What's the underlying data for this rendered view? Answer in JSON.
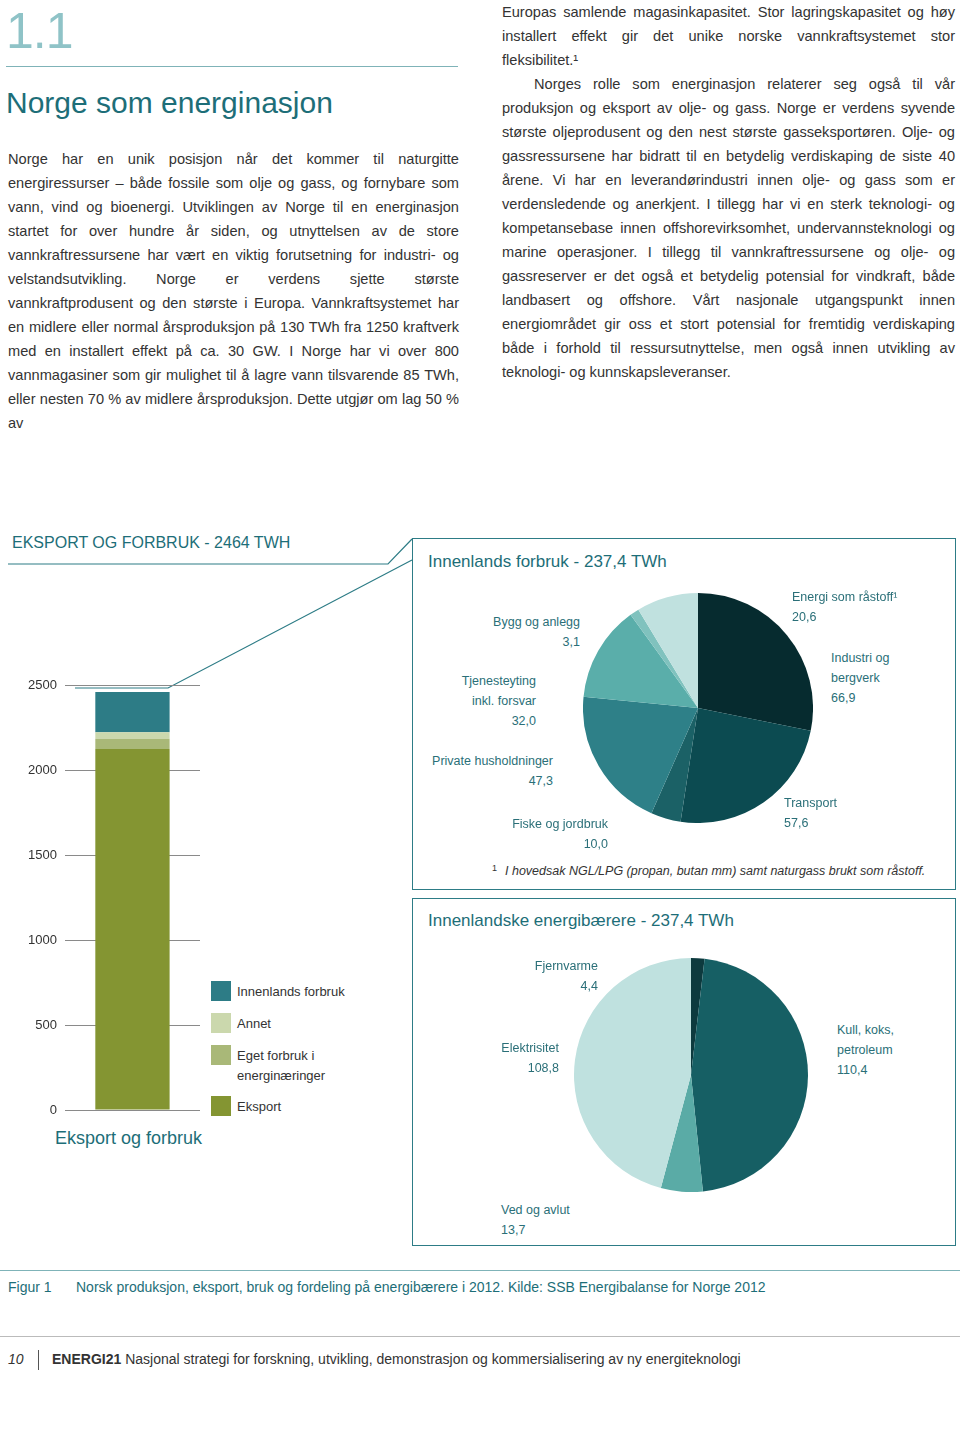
{
  "header": {
    "section": "1.1",
    "title": "Norge som energinasjon"
  },
  "columns": [
    {
      "paragraphs": [
        "Norge har en unik posisjon når det kommer til naturgitte energiressurser – både fossile som olje og gass, og fornybare som vann, vind og bioenergi. Utviklingen av Norge til en energinasjon startet for over hundre år siden, og utnyttelsen av de store vannkraftressursene har vært en viktig forutsetning for industri- og velstandsutvikling. Norge er verdens sjette største vannkraftprodusent og den største i Europa. Vannkraftsystemet har en midlere eller normal årsproduksjon på 130 TWh fra 1250 kraftverk med en installert effekt på ca. 30 GW. I Norge har vi over 800 vannmagasiner som gir mulighet til å lagre vann tilsvarende 85 TWh, eller nesten 70 % av midlere årsproduksjon. Dette utgjør om lag 50 % av"
      ]
    },
    {
      "paragraphs": [
        "Europas samlende magasinkapasitet. Stor lagringskapasitet og høy installert effekt gir det unike norske vannkraftsystemet stor fleksibilitet.¹",
        "Norges rolle som energinasjon relaterer seg også til vår produksjon og eksport av olje- og gass. Norge er verdens syvende største oljeprodusent og den nest største gasseksportøren. Olje- og gassressursene har bidratt til en betydelig verdiskaping de siste 40 årene. Vi har en leverandørindustri innen olje- og gass som er verdensledende og anerkjent. I tillegg har vi en sterk teknologi- og kompetansebase innen offshorevirksomhet, undervannsteknologi og marine operasjoner. I tillegg til vannkraftressursene og olje- og gassreserver er det også et betydelig potensial for vindkraft, både landbasert og offshore. Vårt nasjonale utgangspunkt innen energiområdet gir oss et stort potensial for fremtidig verdiskaping både i forhold til ressursutnyttelse, men også innen utvikling av teknologi- og kunnskapsleveranser."
      ]
    }
  ],
  "chart_data": [
    {
      "type": "bar",
      "title": "EKSPORT OG FORBRUK - 2464 TWH",
      "x_label": "Eksport og forbruk",
      "categories": [
        null
      ],
      "stacked": true,
      "grid": true,
      "legend": "right",
      "ylim": [
        0,
        2500
      ],
      "yticks": [
        0,
        500,
        1000,
        1500,
        2000,
        2500
      ],
      "series": [
        {
          "name": "Eksport",
          "color": "#849532",
          "values": [
            2128
          ]
        },
        {
          "name": "Eget forbruk i energinæringer",
          "color": "#a9b878",
          "values": [
            60
          ]
        },
        {
          "name": "Annet",
          "color": "#cbd8ad",
          "values": [
            38
          ]
        },
        {
          "name": "Innenlands forbruk",
          "color": "#2d7c86",
          "values": [
            237.4
          ]
        }
      ]
    },
    {
      "type": "pie",
      "title": "Innenlands forbruk - 237,4 TWh",
      "data_labels": true,
      "categories": [
        "Industri og bergverk",
        "Transport",
        "Fiske og jordbruk",
        "Private husholdninger",
        "Tjenesteyting inkl. forsvar",
        "Bygg og anlegg",
        "Energi som råstoff¹"
      ],
      "values": [
        66.9,
        57.6,
        10.0,
        47.3,
        32.0,
        3.1,
        20.6
      ],
      "value_labels": [
        "66,9",
        "57,6",
        "10,0",
        "47,3",
        "32,0",
        "3,1",
        "20,6"
      ],
      "colors": [
        "#062b2f",
        "#0c4b51",
        "#1b6166",
        "#2e8088",
        "#5aaeaa",
        "#80c2be",
        "#c0e1df"
      ],
      "footnote": {
        "mark": "1",
        "text": "I hovedsak NGL/LPG (propan, butan mm) samt naturgass brukt som råstoff."
      }
    },
    {
      "type": "pie",
      "title": "Innenlandske energibærere - 237,4 TWh",
      "data_labels": true,
      "categories": [
        "Fjernvarme",
        "Kull, koks, petroleum",
        "Ved og avlut",
        "Elektrisitet"
      ],
      "values": [
        4.4,
        110.4,
        13.7,
        108.8
      ],
      "value_labels": [
        "4,4",
        "110,4",
        "13,7",
        "108,8"
      ],
      "colors": [
        "#0d3a3e",
        "#165f64",
        "#5aaba6",
        "#bfe1df"
      ]
    }
  ],
  "caption": {
    "label": "Figur 1",
    "text": "Norsk produksjon, eksport, bruk og fordeling på energibærere i 2012. Kilde: SSB Energibalanse for Norge 2012"
  },
  "footer": {
    "page": "10",
    "brand": "ENERGI21",
    "text": "Nasjonal strategi for forskning, utvikling, demonstrasjon og kommersialisering av ny energiteknologi"
  }
}
